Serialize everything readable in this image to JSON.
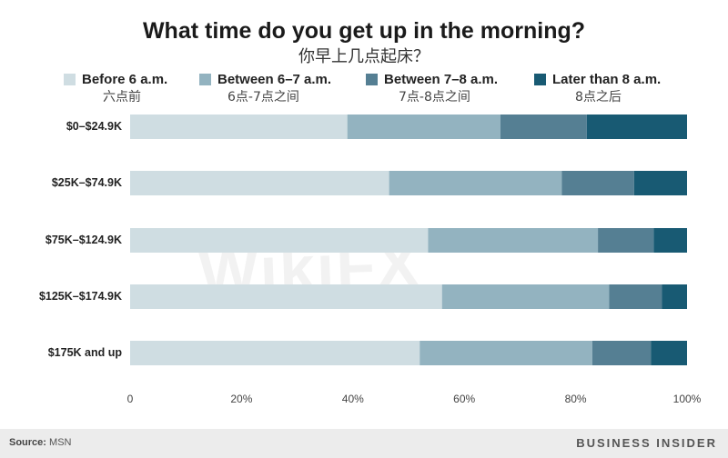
{
  "chart_data": {
    "type": "bar",
    "orientation": "horizontal",
    "stacked": true,
    "title": "What time do you get up in the morning?",
    "subtitle": "你早上几点起床？",
    "categories": [
      "$0–$24.9K",
      "$25K–$74.9K",
      "$75K–$124.9K",
      "$125K–$174.9K",
      "$175K and up"
    ],
    "series": [
      {
        "name": "Before 6 a.m.",
        "name_cn": "六点前",
        "color": "#cfdde2",
        "values": [
          39,
          46.5,
          53.5,
          56,
          52
        ]
      },
      {
        "name": "Between 6–7 a.m.",
        "name_cn": "6点-7点之间",
        "color": "#93b3c0",
        "values": [
          27.5,
          31,
          30.5,
          30,
          31
        ]
      },
      {
        "name": "Between 7–8 a.m.",
        "name_cn": "7点-8点之间",
        "color": "#557f93",
        "values": [
          15.5,
          13,
          10,
          9.5,
          10.5
        ]
      },
      {
        "name": "Later than 8 a.m.",
        "name_cn": "8点之后",
        "color": "#185a73",
        "values": [
          18,
          9.5,
          6,
          4.5,
          6.5
        ]
      }
    ],
    "xlim": [
      0,
      100
    ],
    "x_ticks": [
      "0",
      "20%",
      "40%",
      "60%",
      "80%",
      "100%"
    ],
    "grid": false,
    "legend_position": "top"
  },
  "footer": {
    "source_label": "Source:",
    "source_value": "MSN",
    "brand": "BUSINESS INSIDER"
  },
  "watermark": "WikiFX"
}
